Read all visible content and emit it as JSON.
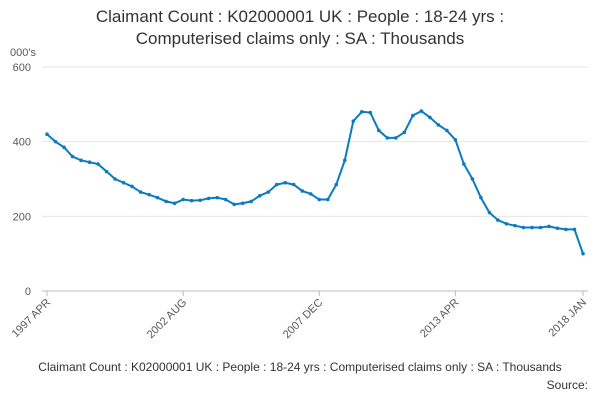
{
  "chart_data": {
    "type": "line",
    "title_lines": [
      "Claimant Count : K02000001 UK : People : 18-24 yrs :",
      "Computerised claims only : SA : Thousands"
    ],
    "y_unit": "000's",
    "caption": "Claimant Count : K02000001 UK : People : 18-24 yrs : Computerised claims only : SA : Thousands",
    "source": "Source:",
    "categories": [
      "1997 APR",
      null,
      null,
      null,
      null,
      null,
      null,
      null,
      null,
      null,
      null,
      null,
      null,
      null,
      null,
      null,
      "2002 AUG",
      null,
      null,
      null,
      null,
      null,
      null,
      null,
      null,
      null,
      null,
      null,
      null,
      null,
      null,
      null,
      "2007 DEC",
      null,
      null,
      null,
      null,
      null,
      null,
      null,
      null,
      null,
      null,
      null,
      null,
      null,
      null,
      null,
      "2013 APR",
      null,
      null,
      null,
      null,
      null,
      null,
      null,
      null,
      null,
      null,
      null,
      null,
      null,
      null,
      "2018 JAN"
    ],
    "series": [
      {
        "color": "#0b7bbf",
        "values": [
          420,
          400,
          385,
          360,
          350,
          345,
          340,
          320,
          300,
          290,
          280,
          265,
          258,
          250,
          240,
          235,
          245,
          242,
          243,
          248,
          250,
          245,
          232,
          235,
          240,
          255,
          265,
          285,
          290,
          285,
          268,
          260,
          245,
          245,
          285,
          350,
          455,
          480,
          478,
          430,
          410,
          410,
          425,
          470,
          482,
          465,
          445,
          430,
          405,
          340,
          300,
          250,
          210,
          190,
          180,
          175,
          170,
          170,
          170,
          173,
          168,
          165,
          165,
          100
        ]
      }
    ],
    "ylim": [
      0,
      600
    ],
    "yticks": [
      0,
      200,
      400,
      600
    ],
    "grid": true
  }
}
